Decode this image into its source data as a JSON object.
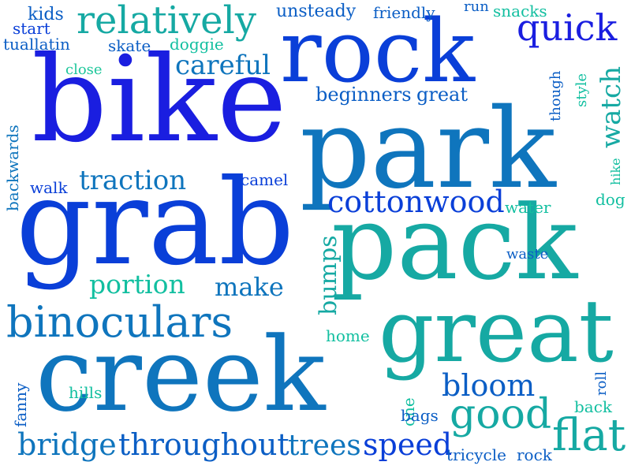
{
  "colors": {
    "blue_deep": "#1a1ee0",
    "blue": "#0a3fd8",
    "blue_mid": "#0b5ec5",
    "blue_steel": "#0f75bd",
    "teal": "#16a9a3",
    "teal_bright": "#12bfa0",
    "green_teal": "#1fc79b"
  },
  "words": [
    {
      "text": "bike",
      "color": "blue_deep"
    },
    {
      "text": "park",
      "color": "blue_steel"
    },
    {
      "text": "grab",
      "color": "blue"
    },
    {
      "text": "pack",
      "color": "teal"
    },
    {
      "text": "creek",
      "color": "blue_steel"
    },
    {
      "text": "great",
      "color": "teal"
    },
    {
      "text": "rock",
      "color": "blue"
    },
    {
      "text": "binoculars",
      "color": "blue_steel"
    },
    {
      "text": "relatively",
      "color": "teal"
    },
    {
      "text": "quick",
      "color": "blue_deep"
    },
    {
      "text": "cottonwood",
      "color": "blue"
    },
    {
      "text": "good",
      "color": "teal"
    },
    {
      "text": "flat",
      "color": "teal"
    },
    {
      "text": "bridge",
      "color": "blue_steel"
    },
    {
      "text": "throughout",
      "color": "blue_mid"
    },
    {
      "text": "trees",
      "color": "blue_steel"
    },
    {
      "text": "speed",
      "color": "blue"
    },
    {
      "text": "bloom",
      "color": "blue_mid"
    },
    {
      "text": "watch",
      "color": "teal"
    },
    {
      "text": "traction",
      "color": "blue_steel"
    },
    {
      "text": "careful",
      "color": "blue_steel"
    },
    {
      "text": "portion",
      "color": "teal_bright"
    },
    {
      "text": "make",
      "color": "blue_steel"
    },
    {
      "text": "bumps",
      "color": "teal"
    },
    {
      "text": "beginners",
      "color": "blue_mid"
    },
    {
      "text": "great",
      "color": "blue_mid"
    },
    {
      "text": "unsteady",
      "color": "blue_mid"
    },
    {
      "text": "friendly",
      "color": "blue_mid"
    },
    {
      "text": "run",
      "color": "blue_mid"
    },
    {
      "text": "snacks",
      "color": "teal_bright"
    },
    {
      "text": "kids",
      "color": "blue_mid"
    },
    {
      "text": "start",
      "color": "blue"
    },
    {
      "text": "tuallatin",
      "color": "blue_mid"
    },
    {
      "text": "skate",
      "color": "blue_mid"
    },
    {
      "text": "doggie",
      "color": "teal_bright"
    },
    {
      "text": "close",
      "color": "green_teal"
    },
    {
      "text": "though",
      "color": "blue_mid"
    },
    {
      "text": "style",
      "color": "teal_bright"
    },
    {
      "text": "hike",
      "color": "teal_bright"
    },
    {
      "text": "camel",
      "color": "blue"
    },
    {
      "text": "walk",
      "color": "blue"
    },
    {
      "text": "backwards",
      "color": "blue_steel"
    },
    {
      "text": "water",
      "color": "teal_bright"
    },
    {
      "text": "dog",
      "color": "teal_bright"
    },
    {
      "text": "waste",
      "color": "blue_mid"
    },
    {
      "text": "home",
      "color": "teal_bright"
    },
    {
      "text": "fanny",
      "color": "blue_mid"
    },
    {
      "text": "hills",
      "color": "teal_bright"
    },
    {
      "text": "one",
      "color": "teal_bright"
    },
    {
      "text": "bags",
      "color": "blue_mid"
    },
    {
      "text": "roll",
      "color": "blue_mid"
    },
    {
      "text": "back",
      "color": "teal_bright"
    },
    {
      "text": "tricycle",
      "color": "blue_mid"
    },
    {
      "text": "rock",
      "color": "blue_mid"
    }
  ]
}
